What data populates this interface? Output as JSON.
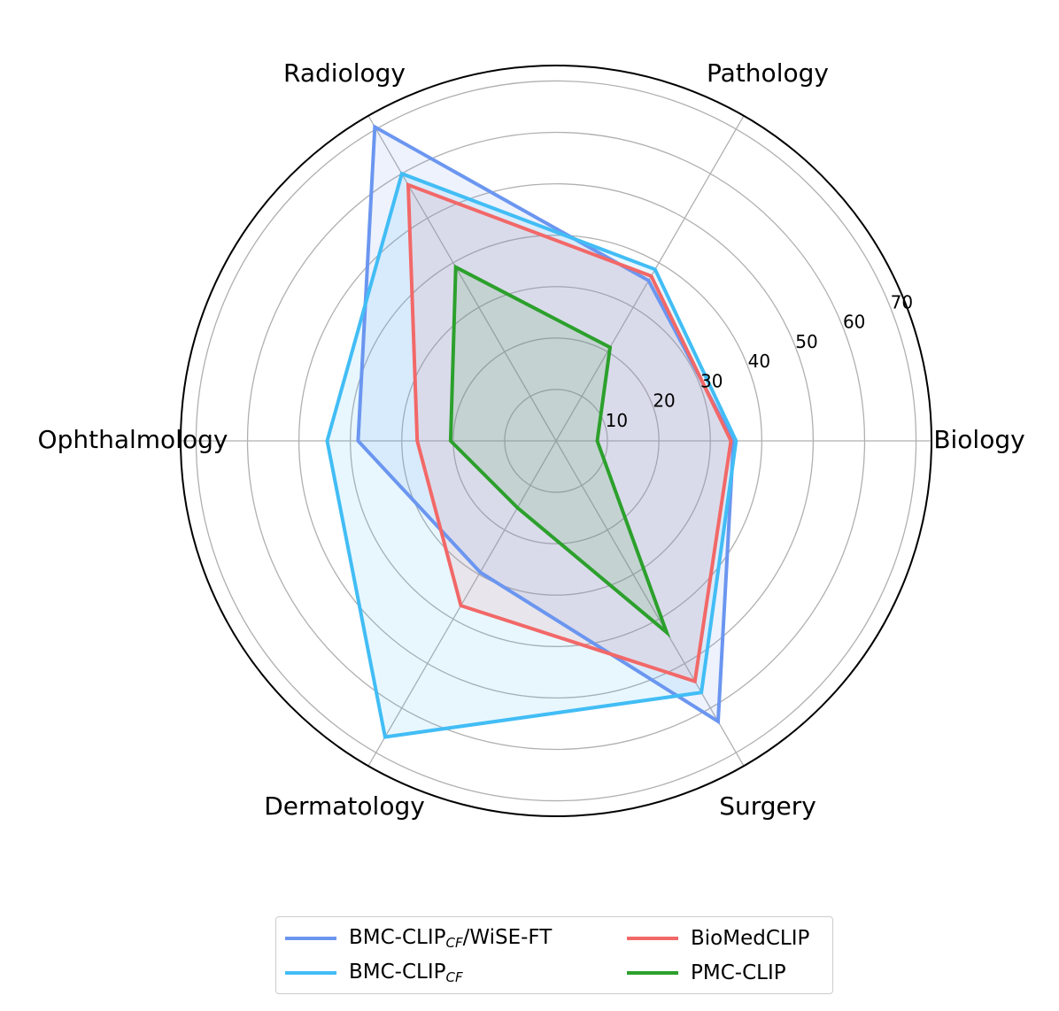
{
  "chart_data": {
    "type": "radar",
    "categories": [
      "Biology",
      "Pathology",
      "Radiology",
      "Ophthalmology",
      "Dermatology",
      "Surgery"
    ],
    "radial_ticks": [
      10,
      20,
      30,
      40,
      50,
      60,
      70
    ],
    "rlim": [
      0,
      73
    ],
    "grid": true,
    "legend_position": "bottom",
    "series": [
      {
        "name": "BMC-CLIP_CF/WiSE-FT",
        "legend_main": "BMC-CLIP",
        "legend_sub": "CF",
        "legend_suffix": "/WiSE-FT",
        "color": "#6b96f0",
        "values": [
          34.5,
          36.0,
          70.5,
          38.5,
          29.5,
          63.0
        ]
      },
      {
        "name": "BMC-CLIP_CF",
        "legend_main": "BMC-CLIP",
        "legend_sub": "CF",
        "legend_suffix": "",
        "color": "#42bdf5",
        "values": [
          35.0,
          38.5,
          60.0,
          44.5,
          66.5,
          56.5
        ]
      },
      {
        "name": "BioMedCLIP",
        "legend_main": "BioMedCLIP",
        "legend_sub": "",
        "legend_suffix": "",
        "color": "#f26868",
        "values": [
          34.0,
          37.0,
          57.5,
          27.0,
          37.0,
          54.0
        ]
      },
      {
        "name": "PMC-CLIP",
        "legend_main": "PMC-CLIP",
        "legend_sub": "",
        "legend_suffix": "",
        "color": "#2ca02c",
        "values": [
          8.0,
          21.0,
          39.0,
          20.5,
          15.0,
          43.0
        ]
      }
    ]
  }
}
